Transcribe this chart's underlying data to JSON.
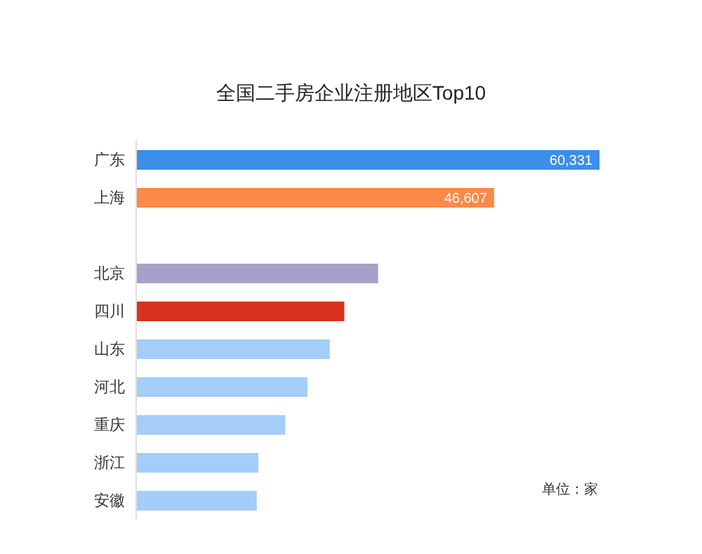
{
  "chart_data": {
    "type": "bar",
    "orientation": "horizontal",
    "title": "全国二手房企业注册地区Top10",
    "categories": [
      "广东",
      "上海",
      null,
      "北京",
      "四川",
      "山东",
      "河北",
      "重庆",
      "浙江",
      "安徽"
    ],
    "values": [
      60331,
      46607,
      null,
      31500,
      27100,
      25200,
      22300,
      19400,
      15900,
      15700
    ],
    "value_labels": [
      "60,331",
      "46,607",
      null,
      null,
      null,
      null,
      null,
      null,
      null,
      null
    ],
    "colors": [
      "#3c8ee8",
      "#f98a48",
      "#b0b0b0",
      "#a8a0c8",
      "#d8321f",
      "#a4cdf9",
      "#a4cdf9",
      "#a4cdf9",
      "#a4cdf9",
      "#a4cdf9"
    ],
    "tick_labels": "y",
    "annotations": [
      "单位：家"
    ]
  }
}
